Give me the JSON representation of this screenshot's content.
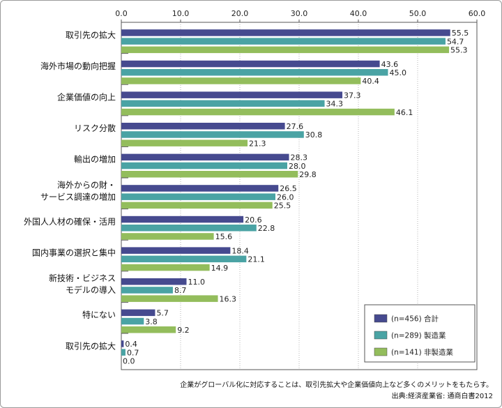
{
  "chart_data": {
    "type": "bar",
    "orientation": "horizontal",
    "xlim": [
      0,
      60
    ],
    "xticks": [
      "0.0",
      "10.0",
      "20.0",
      "30.0",
      "40.0",
      "50.0",
      "60.0"
    ],
    "grid": "vertical dotted",
    "legend_position": "bottom-right",
    "categories": [
      [
        "取引先の拡大"
      ],
      [
        "海外市場の動向把握"
      ],
      [
        "企業価値の向上"
      ],
      [
        "リスク分散"
      ],
      [
        "輸出の増加"
      ],
      [
        "海外からの財・",
        "サービス調達の増加"
      ],
      [
        "外国人人材の確保・活用"
      ],
      [
        "国内事業の選択と集中"
      ],
      [
        "新技術・ビジネス",
        "モデルの導入"
      ],
      [
        "特にない"
      ],
      [
        "取引先の拡大"
      ]
    ],
    "series": [
      {
        "name": "(n=456) 合計",
        "color": "#464a8f",
        "values": [
          55.5,
          43.6,
          37.3,
          27.6,
          28.3,
          26.5,
          20.6,
          18.4,
          11.0,
          5.7,
          0.4
        ]
      },
      {
        "name": "(n=289) 製造業",
        "color": "#4aa3a4",
        "values": [
          54.7,
          45.0,
          34.3,
          30.8,
          28.0,
          26.0,
          22.8,
          21.1,
          8.7,
          3.8,
          0.7
        ]
      },
      {
        "name": "(n=141) 非製造業",
        "color": "#93bd5c",
        "values": [
          55.3,
          40.4,
          46.1,
          21.3,
          29.8,
          25.5,
          15.6,
          14.9,
          16.3,
          9.2,
          0.0
        ]
      }
    ]
  },
  "footnote": {
    "line1": "企業がグローバル化に対応することは、取引先拡大や企業価値向上など多くのメリットをもたらす。",
    "line2": "出典:経済産業省: 通商白書2012"
  }
}
